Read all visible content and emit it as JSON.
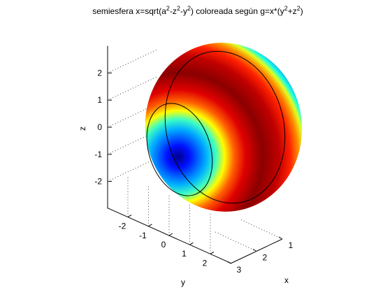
{
  "chart_data": {
    "type": "surface",
    "title_parts": [
      "semiesfera x=sqrt(a",
      "2",
      "-z",
      "2",
      "-y",
      "2",
      ") coloreada según g=x*(y",
      "2",
      "+z",
      "2",
      ")"
    ],
    "xlabel": "x",
    "ylabel": "y",
    "zlabel": "z",
    "xlim": [
      1,
      3
    ],
    "xticks": [
      1,
      2,
      3
    ],
    "ylim": [
      -3,
      3
    ],
    "yticks": [
      -2,
      -1,
      0,
      1,
      2
    ],
    "zlim": [
      -3,
      3
    ],
    "zticks": [
      -2,
      -1,
      0,
      1,
      2
    ],
    "grid": true
  }
}
